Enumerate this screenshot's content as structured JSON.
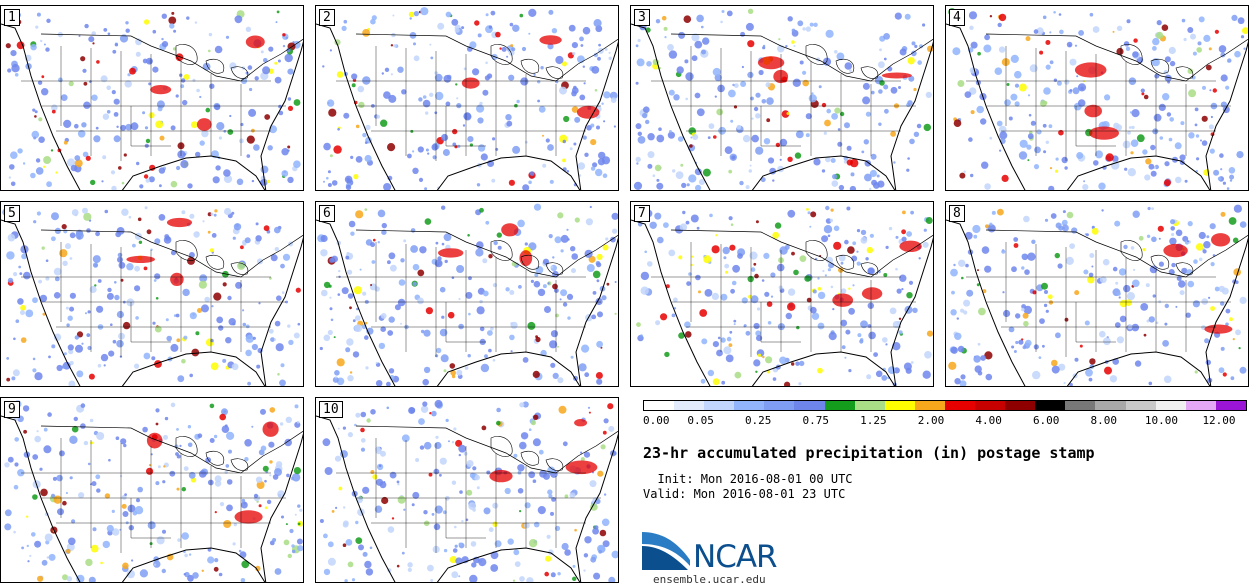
{
  "panels": [
    {
      "label": "1"
    },
    {
      "label": "2"
    },
    {
      "label": "3"
    },
    {
      "label": "4"
    },
    {
      "label": "5"
    },
    {
      "label": "6"
    },
    {
      "label": "7"
    },
    {
      "label": "8"
    },
    {
      "label": "9"
    },
    {
      "label": "10"
    }
  ],
  "colorbar": {
    "colors": [
      "#ffffff",
      "#e1ebfc",
      "#c2d5fc",
      "#91b4fc",
      "#7f9df3",
      "#6e86ec",
      "#149c1c",
      "#a9dd86",
      "#fffd00",
      "#f7a71b",
      "#e60000",
      "#c70000",
      "#8e0000",
      "#000000",
      "#787878",
      "#a8a8a8",
      "#c9c9c9",
      "#f0f0f0",
      "#e3a7f6",
      "#9a15d6"
    ],
    "tick_labels": [
      "0.00",
      "0.05",
      "0.25",
      "0.75",
      "1.25",
      "2.00",
      "4.00",
      "6.00",
      "8.00",
      "10.00",
      "12.00"
    ]
  },
  "title": "23-hr accumulated precipitation (in) postage stamp",
  "init": "  Init: Mon 2016-08-01 00 UTC",
  "valid": "Valid: Mon 2016-08-01 23 UTC",
  "logo": {
    "text": "NCAR",
    "url": "ensemble.ucar.edu",
    "color": "#0c4f8e"
  }
}
